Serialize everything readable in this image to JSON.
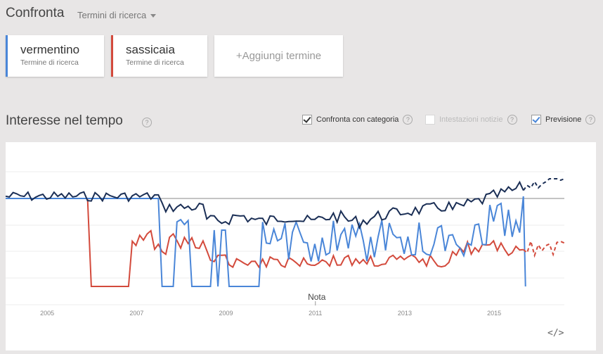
{
  "header": {
    "title": "Confronta",
    "menu_label": "Termini di ricerca"
  },
  "terms": [
    {
      "name": "vermentino",
      "subtitle": "Termine di ricerca",
      "color": "#4a86d8"
    },
    {
      "name": "sassicaia",
      "subtitle": "Termine di ricerca",
      "color": "#d34a3c"
    }
  ],
  "add_term_label": "+Aggiungi termine",
  "section": {
    "title": "Interesse nel tempo",
    "help": "?"
  },
  "options": [
    {
      "label": "Confronta con categoria",
      "checked": true,
      "enabled": true
    },
    {
      "label": "Intestazioni notizie",
      "checked": false,
      "enabled": false
    },
    {
      "label": "Previsione",
      "checked": true,
      "enabled": true
    }
  ],
  "chart_data": {
    "type": "line",
    "x_ticks": [
      "2005",
      "2007",
      "2009",
      "2011",
      "2013",
      "2015"
    ],
    "annotation": "Nota",
    "forecast_from": 2015.7,
    "series": [
      {
        "name": "vermentino",
        "color": "#4a86d8"
      },
      {
        "name": "sassicaia",
        "color": "#d34a3c"
      },
      {
        "color": "#1a2e55"
      }
    ]
  },
  "embed_icon": "</>"
}
